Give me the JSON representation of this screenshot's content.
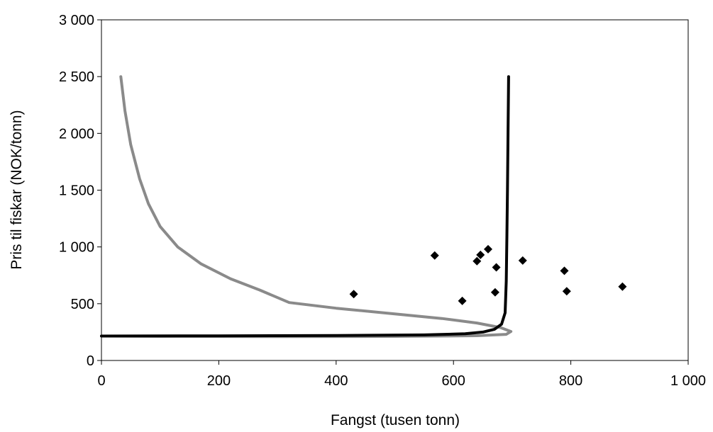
{
  "chart_data": {
    "type": "scatter",
    "xlabel": "Fangst (tusen tonn)",
    "ylabel": "Pris til fiskar (NOK/tonn)",
    "xlim": [
      0,
      1000
    ],
    "ylim": [
      0,
      3000
    ],
    "x_ticks": [
      0,
      200,
      400,
      600,
      800,
      1000
    ],
    "y_ticks": [
      0,
      500,
      1000,
      1500,
      2000,
      2500,
      3000
    ],
    "x_tick_labels": [
      "0",
      "200",
      "400",
      "600",
      "800",
      "1 000"
    ],
    "y_tick_labels": [
      "0",
      "500",
      "1 000",
      "1 500",
      "2 000",
      "2 500",
      "3 000"
    ],
    "grid": false,
    "series": [
      {
        "kind": "line",
        "color": "#8a8a8a",
        "points": [
          [
            33,
            2500
          ],
          [
            40,
            2200
          ],
          [
            50,
            1900
          ],
          [
            65,
            1600
          ],
          [
            80,
            1380
          ],
          [
            100,
            1180
          ],
          [
            130,
            1000
          ],
          [
            170,
            850
          ],
          [
            220,
            720
          ],
          [
            270,
            620
          ],
          [
            320,
            510
          ],
          [
            400,
            460
          ],
          [
            500,
            410
          ],
          [
            580,
            370
          ],
          [
            640,
            330
          ],
          [
            680,
            290
          ],
          [
            698,
            255
          ],
          [
            690,
            230
          ],
          [
            640,
            218
          ],
          [
            500,
            212
          ],
          [
            300,
            210
          ],
          [
            100,
            212
          ],
          [
            0,
            215
          ]
        ]
      },
      {
        "kind": "line",
        "color": "#000000",
        "points": [
          [
            0,
            215
          ],
          [
            200,
            217
          ],
          [
            400,
            220
          ],
          [
            550,
            225
          ],
          [
            620,
            235
          ],
          [
            650,
            250
          ],
          [
            670,
            275
          ],
          [
            682,
            320
          ],
          [
            688,
            420
          ],
          [
            690,
            700
          ],
          [
            691,
            1100
          ],
          [
            692,
            1500
          ],
          [
            693,
            2000
          ],
          [
            694,
            2500
          ]
        ]
      },
      {
        "kind": "points",
        "color": "#000000",
        "marker": "diamond",
        "points": [
          [
            430,
            585
          ],
          [
            568,
            925
          ],
          [
            615,
            525
          ],
          [
            640,
            875
          ],
          [
            646,
            930
          ],
          [
            659,
            980
          ],
          [
            671,
            600
          ],
          [
            673,
            820
          ],
          [
            718,
            880
          ],
          [
            789,
            790
          ],
          [
            793,
            610
          ],
          [
            888,
            650
          ]
        ]
      }
    ]
  }
}
